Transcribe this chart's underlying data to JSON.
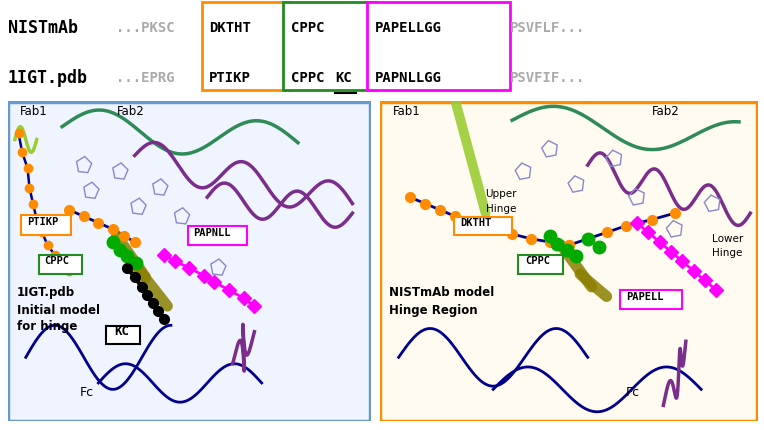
{
  "fig_width": 7.64,
  "fig_height": 4.3,
  "bg_color": "#ffffff",
  "header": {
    "row1_label": "NISTmAb",
    "row2_label": "1IGT.pdb",
    "row1_prefix": "...PKSC",
    "row2_prefix": "...EPRG",
    "row1_seg1": "DKTHT",
    "row2_seg1": "PTIKP",
    "row1_seg2": "CPPC",
    "row2_seg2_part1": "CPPC",
    "row2_seg2_part2": "KC",
    "row1_seg3": "PAPELLGG",
    "row2_seg3": "PAPNLLGG",
    "row1_suffix": "PSVFLF...",
    "row2_suffix": "PSVFIF...",
    "box1_color": "#FF8C00",
    "box2_color": "#228B22",
    "box3_color": "#FF00FF"
  },
  "panel_left": {
    "border_color": "#6699CC",
    "label_topleft": "Fab1",
    "label_topright": "Fab2",
    "label_ptikp": "PTIKP",
    "label_cppc": "CPPC",
    "label_papnll": "PAPNLL",
    "label_kc": "KC",
    "bottom_text1": "1IGT.pdb",
    "bottom_text2": "Initial model",
    "bottom_text3": "for hinge",
    "fc_label": "Fc"
  },
  "panel_right": {
    "border_color": "#FFA500",
    "label_topleft": "Fab1",
    "label_topright": "Fab2",
    "label_upper_hinge_1": "Upper",
    "label_upper_hinge_2": "Hinge",
    "label_lower_hinge_1": "Lower",
    "label_lower_hinge_2": "Hinge",
    "label_dktht": "DKTHT",
    "label_cppc": "CPPC",
    "label_papell": "PAPELL",
    "bottom_text1": "NISTmAb model",
    "bottom_text2": "Hinge Region",
    "fc_label": "Fc"
  },
  "colors": {
    "dark_blue": "#00008B",
    "navy": "#000080",
    "purple": "#7B2D8B",
    "orange": "#FF8C00",
    "green_dots": "#00AA00",
    "magenta": "#FF00FF",
    "olive": "#8B8000",
    "black": "#000000",
    "gray_text": "#AAAAAA",
    "teal": "#008080",
    "sea_green": "#2E8B57",
    "lime_green": "#9ACD32",
    "blue_border": "#6699CC",
    "panel_bg_left": "#F0F4FF",
    "panel_bg_right": "#FFFBF0"
  }
}
